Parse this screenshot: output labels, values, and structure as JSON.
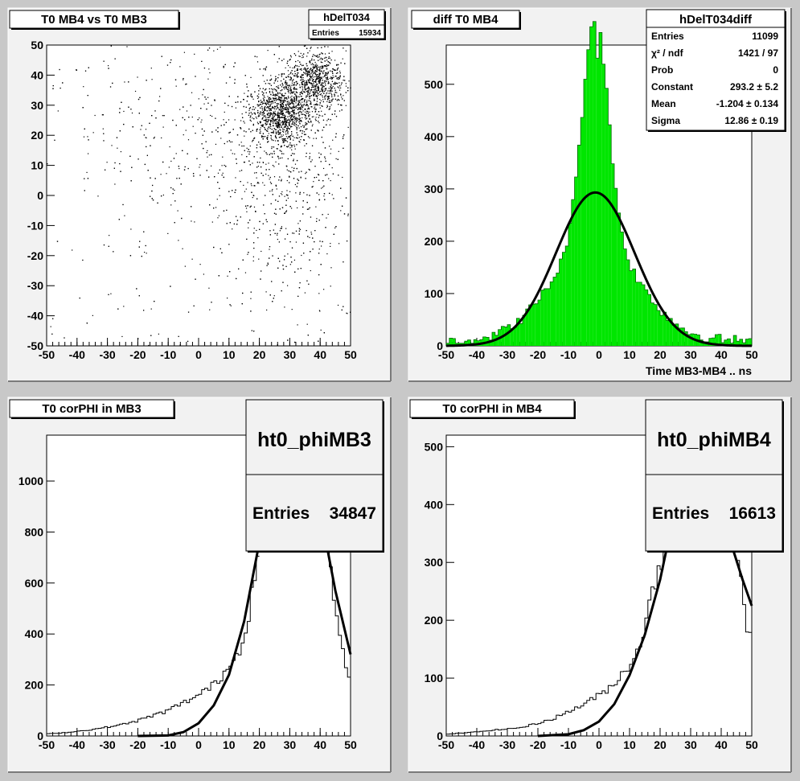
{
  "chart_data": [
    {
      "type": "scatter",
      "title": "T0 MB4 vs T0 MB3",
      "stats": {
        "name": "hDelT034",
        "rows": [
          {
            "label": "Entries",
            "value": "15934"
          }
        ]
      },
      "xlim": [
        -50,
        50
      ],
      "ylim": [
        -50,
        50
      ],
      "xticks": [
        -50,
        -40,
        -30,
        -20,
        -10,
        0,
        10,
        20,
        30,
        40,
        50
      ],
      "yticks": [
        -50,
        -40,
        -30,
        -20,
        -10,
        0,
        10,
        20,
        30,
        40,
        50
      ],
      "density": {
        "description_free": true,
        "clusters": [
          {
            "x": 27,
            "y": 27,
            "sx": 5,
            "sy": 5,
            "weight": 0.35
          },
          {
            "x": 38,
            "y": 38,
            "sx": 5,
            "sy": 5,
            "weight": 0.3
          },
          {
            "x": 30,
            "y": 5,
            "sx": 10,
            "sy": 20,
            "weight": 0.2
          },
          {
            "x": 5,
            "y": 20,
            "sx": 20,
            "sy": 15,
            "weight": 0.15
          }
        ]
      }
    },
    {
      "type": "bar",
      "title": "diff T0 MB4",
      "xlabel": "Time MB3-MB4  ..  ns",
      "xlim": [
        -50,
        50
      ],
      "ylim": [
        0,
        575
      ],
      "xticks": [
        -50,
        -40,
        -30,
        -20,
        -10,
        0,
        10,
        20,
        30,
        40,
        50
      ],
      "yticks": [
        0,
        100,
        200,
        300,
        400,
        500
      ],
      "fill_color": "#00e600",
      "stats": {
        "name": "hDelT034diff",
        "rows": [
          {
            "label": "Entries",
            "value": "11099"
          },
          {
            "label": "χ² / ndf",
            "value": "1421 / 97"
          },
          {
            "label": "Prob",
            "value": "0"
          },
          {
            "label": "Constant",
            "value": "293.2 ± 5.2"
          },
          {
            "label": "Mean",
            "value": "-1.204 ± 0.134"
          },
          {
            "label": "Sigma",
            "value": "12.86 ± 0.19"
          }
        ]
      },
      "fit": {
        "constant": 293.2,
        "mean": -1.204,
        "sigma": 12.86
      }
    },
    {
      "type": "line",
      "title": "T0 corPHI in MB3",
      "xlim": [
        -50,
        50
      ],
      "ylim": [
        0,
        1180
      ],
      "xticks": [
        -50,
        -40,
        -30,
        -20,
        -10,
        0,
        10,
        20,
        30,
        40,
        50
      ],
      "yticks": [
        0,
        200,
        400,
        600,
        800,
        1000
      ],
      "stats": {
        "name": "ht0_phiMB3",
        "rows": [
          {
            "label": "Entries",
            "value": "34847"
          }
        ]
      },
      "points": [
        [
          -50,
          8
        ],
        [
          -45,
          12
        ],
        [
          -40,
          18
        ],
        [
          -35,
          25
        ],
        [
          -30,
          35
        ],
        [
          -25,
          45
        ],
        [
          -20,
          60
        ],
        [
          -15,
          80
        ],
        [
          -10,
          100
        ],
        [
          -5,
          130
        ],
        [
          0,
          160
        ],
        [
          5,
          200
        ],
        [
          8,
          240
        ],
        [
          10,
          280
        ],
        [
          12,
          300
        ],
        [
          14,
          360
        ],
        [
          16,
          450
        ],
        [
          18,
          600
        ],
        [
          19,
          720
        ],
        [
          20,
          800
        ],
        [
          42,
          800
        ],
        [
          43,
          700
        ],
        [
          44,
          580
        ],
        [
          45,
          480
        ],
        [
          46,
          420
        ],
        [
          47,
          360
        ],
        [
          48,
          300
        ],
        [
          49,
          260
        ],
        [
          50,
          170
        ]
      ],
      "fit_points": [
        [
          -50,
          0
        ],
        [
          -20,
          0
        ],
        [
          -10,
          2
        ],
        [
          -5,
          15
        ],
        [
          0,
          50
        ],
        [
          5,
          120
        ],
        [
          10,
          240
        ],
        [
          15,
          450
        ],
        [
          20,
          760
        ],
        [
          21,
          820
        ],
        [
          41,
          820
        ],
        [
          45,
          570
        ],
        [
          50,
          320
        ]
      ]
    },
    {
      "type": "line",
      "title": "T0 corPHI in MB4",
      "xlim": [
        -50,
        50
      ],
      "ylim": [
        0,
        520
      ],
      "xticks": [
        -50,
        -40,
        -30,
        -20,
        -10,
        0,
        10,
        20,
        30,
        40,
        50
      ],
      "yticks": [
        0,
        100,
        200,
        300,
        400,
        500
      ],
      "stats": {
        "name": "ht0_phiMB4",
        "rows": [
          {
            "label": "Entries",
            "value": "16613"
          }
        ]
      },
      "points": [
        [
          -50,
          3
        ],
        [
          -45,
          5
        ],
        [
          -40,
          7
        ],
        [
          -35,
          10
        ],
        [
          -30,
          12
        ],
        [
          -25,
          15
        ],
        [
          -20,
          22
        ],
        [
          -15,
          30
        ],
        [
          -10,
          42
        ],
        [
          -5,
          55
        ],
        [
          0,
          70
        ],
        [
          5,
          90
        ],
        [
          8,
          110
        ],
        [
          10,
          125
        ],
        [
          12,
          140
        ],
        [
          14,
          170
        ],
        [
          16,
          210
        ],
        [
          18,
          260
        ],
        [
          20,
          300
        ],
        [
          22,
          330
        ],
        [
          45,
          330
        ],
        [
          46,
          300
        ],
        [
          47,
          260
        ],
        [
          48,
          210
        ],
        [
          49,
          180
        ],
        [
          50,
          155
        ]
      ],
      "fit_points": [
        [
          -50,
          0
        ],
        [
          -20,
          0
        ],
        [
          -10,
          3
        ],
        [
          -5,
          10
        ],
        [
          0,
          25
        ],
        [
          5,
          55
        ],
        [
          10,
          105
        ],
        [
          15,
          175
        ],
        [
          20,
          270
        ],
        [
          22,
          320
        ],
        [
          44,
          320
        ],
        [
          47,
          270
        ],
        [
          50,
          225
        ]
      ]
    }
  ]
}
